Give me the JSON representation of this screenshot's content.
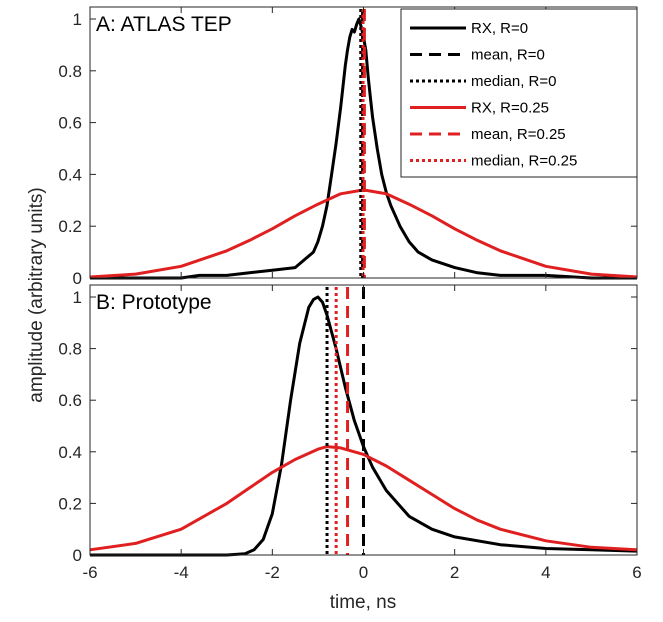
{
  "chart_data": [
    {
      "type": "line",
      "title": "A: ATLAS TEP",
      "xlim": [
        -6,
        6
      ],
      "ylim": [
        0,
        1
      ],
      "xticks": [],
      "yticks": [
        "0",
        "0.2",
        "0.4",
        "0.6",
        "0.8",
        "1"
      ],
      "legend": {
        "placement": "top-right",
        "entries": [
          {
            "label": "RX, R=0",
            "color": "#000000",
            "style": "solid"
          },
          {
            "label": "mean, R=0",
            "color": "#000000",
            "style": "dashed"
          },
          {
            "label": "median, R=0",
            "color": "#000000",
            "style": "dotted"
          },
          {
            "label": "RX, R=0.25",
            "color": "#e02020",
            "style": "solid"
          },
          {
            "label": "mean, R=0.25",
            "color": "#e02020",
            "style": "dashed"
          },
          {
            "label": "median, R=0.25",
            "color": "#e02020",
            "style": "dotted"
          }
        ]
      },
      "series": [
        {
          "name": "RX, R=0",
          "color": "#000000",
          "style": "solid",
          "x": [
            -6,
            -5,
            -4,
            -3.6,
            -3,
            -2.5,
            -2,
            -1.5,
            -1.3,
            -1.1,
            -1,
            -0.9,
            -0.8,
            -0.7,
            -0.6,
            -0.5,
            -0.45,
            -0.4,
            -0.35,
            -0.3,
            -0.25,
            -0.2,
            -0.15,
            -0.1,
            -0.05,
            0,
            0.05,
            0.1,
            0.15,
            0.2,
            0.3,
            0.4,
            0.5,
            0.6,
            0.7,
            0.8,
            1,
            1.2,
            1.5,
            2,
            2.5,
            3,
            4,
            5,
            6
          ],
          "y": [
            0,
            0,
            0,
            0.01,
            0.01,
            0.02,
            0.03,
            0.04,
            0.07,
            0.1,
            0.14,
            0.2,
            0.28,
            0.4,
            0.52,
            0.66,
            0.74,
            0.82,
            0.88,
            0.93,
            0.96,
            0.95,
            0.98,
            1.0,
            0.97,
            0.93,
            0.88,
            0.78,
            0.7,
            0.62,
            0.5,
            0.4,
            0.33,
            0.28,
            0.24,
            0.2,
            0.14,
            0.1,
            0.07,
            0.04,
            0.02,
            0.01,
            0.01,
            0,
            0
          ]
        },
        {
          "name": "RX, R=0.25",
          "color": "#e02020",
          "style": "solid",
          "x": [
            -6,
            -5,
            -4,
            -3,
            -2.5,
            -2,
            -1.5,
            -1,
            -0.5,
            0,
            0.5,
            1,
            1.5,
            2,
            2.5,
            3,
            4,
            5,
            6
          ],
          "y": [
            0.004,
            0.015,
            0.045,
            0.105,
            0.145,
            0.19,
            0.24,
            0.285,
            0.325,
            0.34,
            0.325,
            0.285,
            0.24,
            0.19,
            0.145,
            0.105,
            0.045,
            0.015,
            0.004
          ]
        },
        {
          "name": "mean, R=0",
          "color": "#000000",
          "style": "dashed",
          "vline": -0.02
        },
        {
          "name": "median, R=0",
          "color": "#000000",
          "style": "dotted",
          "vline": -0.06
        },
        {
          "name": "mean, R=0.25",
          "color": "#e02020",
          "style": "dashed",
          "vline": 0.02
        },
        {
          "name": "median, R=0.25",
          "color": "#e02020",
          "style": "dotted",
          "vline": -0.01
        }
      ]
    },
    {
      "type": "line",
      "title": "B: Prototype",
      "xlabel": "time, ns",
      "ylabel": "amplitude (arbitrary units)",
      "xlim": [
        -6,
        6
      ],
      "ylim": [
        0,
        1
      ],
      "xticks": [
        "-6",
        "-4",
        "-2",
        "0",
        "2",
        "4",
        "6"
      ],
      "yticks": [
        "0",
        "0.2",
        "0.4",
        "0.6",
        "0.8",
        "1"
      ],
      "series": [
        {
          "name": "RX, R=0",
          "color": "#000000",
          "style": "solid",
          "x": [
            -6,
            -3,
            -2.6,
            -2.4,
            -2.2,
            -2,
            -1.8,
            -1.6,
            -1.4,
            -1.2,
            -1.1,
            -1,
            -0.9,
            -0.8,
            -0.6,
            -0.4,
            -0.2,
            0,
            0.2,
            0.5,
            1,
            1.5,
            2,
            3,
            4,
            5,
            6
          ],
          "y": [
            0,
            0,
            0.005,
            0.02,
            0.06,
            0.16,
            0.35,
            0.6,
            0.82,
            0.96,
            0.99,
            1.0,
            0.98,
            0.93,
            0.8,
            0.65,
            0.52,
            0.42,
            0.34,
            0.25,
            0.15,
            0.1,
            0.07,
            0.04,
            0.025,
            0.02,
            0.015
          ]
        },
        {
          "name": "RX, R=0.25",
          "color": "#e02020",
          "style": "solid",
          "x": [
            -6,
            -5,
            -4,
            -3,
            -2.5,
            -2,
            -1.5,
            -1,
            -0.8,
            -0.5,
            0,
            0.5,
            1,
            1.5,
            2,
            2.5,
            3,
            4,
            5,
            6
          ],
          "y": [
            0.02,
            0.045,
            0.1,
            0.2,
            0.26,
            0.32,
            0.37,
            0.41,
            0.42,
            0.415,
            0.39,
            0.345,
            0.29,
            0.235,
            0.18,
            0.135,
            0.1,
            0.055,
            0.03,
            0.02
          ]
        },
        {
          "name": "mean, R=0",
          "color": "#000000",
          "style": "dashed",
          "vline": 0.0
        },
        {
          "name": "median, R=0",
          "color": "#000000",
          "style": "dotted",
          "vline": -0.8
        },
        {
          "name": "mean, R=0.25",
          "color": "#e02020",
          "style": "dashed",
          "vline": -0.35
        },
        {
          "name": "median, R=0.25",
          "color": "#e02020",
          "style": "dotted",
          "vline": -0.6
        }
      ]
    }
  ]
}
